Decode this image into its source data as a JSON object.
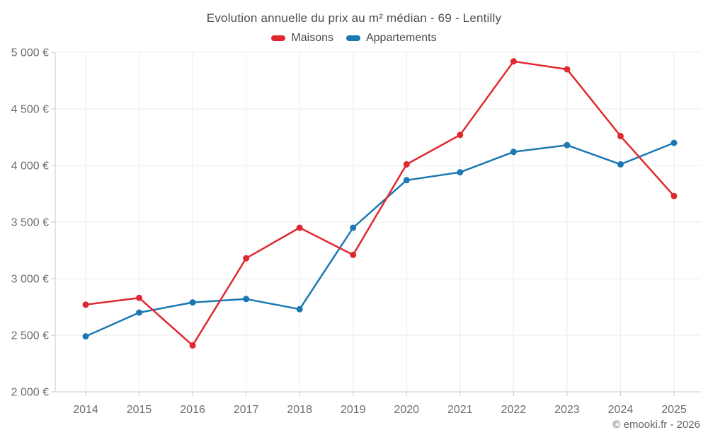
{
  "footer": {
    "credit": "© emooki.fr - 2026"
  },
  "colors": {
    "maisons": "#e02830",
    "appartements": "#1c78b2",
    "grid": "#ebebeb",
    "axis": "#c9c9c9",
    "tick_label": "#6d6d6d",
    "title_text": "#4d4d4d"
  },
  "chart_data": {
    "type": "line",
    "title": "Evolution annuelle du prix au m² médian - 69 - Lentilly",
    "xlabel": "",
    "ylabel": "",
    "unit": "€",
    "x": [
      2014,
      2015,
      2016,
      2017,
      2018,
      2019,
      2020,
      2021,
      2022,
      2023,
      2024,
      2025
    ],
    "series": [
      {
        "name": "Maisons",
        "color": "#e02830",
        "values": [
          2770,
          2830,
          2410,
          3180,
          3450,
          3210,
          4010,
          4270,
          4920,
          4850,
          4260,
          3730
        ]
      },
      {
        "name": "Appartements",
        "color": "#1c78b2",
        "values": [
          2490,
          2700,
          2790,
          2820,
          2730,
          3450,
          3870,
          3940,
          4120,
          4180,
          4010,
          4200
        ]
      }
    ],
    "ylim": [
      2000,
      5000
    ],
    "ytick_step": 500,
    "ytick_labels": [
      "2 000 €",
      "2 500 €",
      "3 000 €",
      "3 500 €",
      "4 000 €",
      "4 500 €",
      "5 000 €"
    ],
    "grid": true,
    "legend_position": "top",
    "markers": true
  }
}
